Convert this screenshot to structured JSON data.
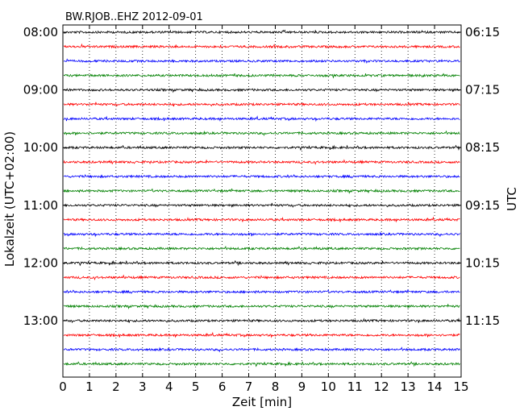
{
  "chart_data": {
    "type": "line",
    "title": "BW.RJOB..EHZ 2012-09-01",
    "xlabel": "Zeit  [min]",
    "ylabel_left": "Lokalzeit (UTC+02:00)",
    "ylabel_right": "UTC",
    "xlim": [
      0,
      15
    ],
    "x_ticks": [
      0,
      1,
      2,
      3,
      4,
      5,
      6,
      7,
      8,
      9,
      10,
      11,
      12,
      13,
      14,
      15
    ],
    "x_tick_labels": [
      "0",
      "1",
      "2",
      "3",
      "4",
      "5",
      "6",
      "7",
      "8",
      "9",
      "10",
      "11",
      "12",
      "13",
      "14",
      "15"
    ],
    "vertical_grid": "dotted",
    "trace_interval_min": 15,
    "trace_colors": [
      "#000000",
      "#ff0000",
      "#0000ff",
      "#008000"
    ],
    "traces_local_start": [
      "08:00",
      "08:15",
      "08:30",
      "08:45",
      "09:00",
      "09:15",
      "09:30",
      "09:45",
      "10:00",
      "10:15",
      "10:30",
      "10:45",
      "11:00",
      "11:15",
      "11:30",
      "11:45",
      "12:00",
      "12:15",
      "12:30",
      "12:45",
      "13:00",
      "13:15",
      "13:30",
      "13:45"
    ],
    "left_tick_labels": [
      {
        "trace": 0,
        "text": "08:00"
      },
      {
        "trace": 4,
        "text": "09:00"
      },
      {
        "trace": 8,
        "text": "10:00"
      },
      {
        "trace": 12,
        "text": "11:00"
      },
      {
        "trace": 16,
        "text": "12:00"
      },
      {
        "trace": 20,
        "text": "13:00"
      }
    ],
    "right_tick_labels": [
      {
        "trace": 0,
        "text": "06:15"
      },
      {
        "trace": 4,
        "text": "07:15"
      },
      {
        "trace": 8,
        "text": "08:15"
      },
      {
        "trace": 12,
        "text": "09:15"
      },
      {
        "trace": 16,
        "text": "10:15"
      },
      {
        "trace": 20,
        "text": "11:15"
      }
    ]
  }
}
